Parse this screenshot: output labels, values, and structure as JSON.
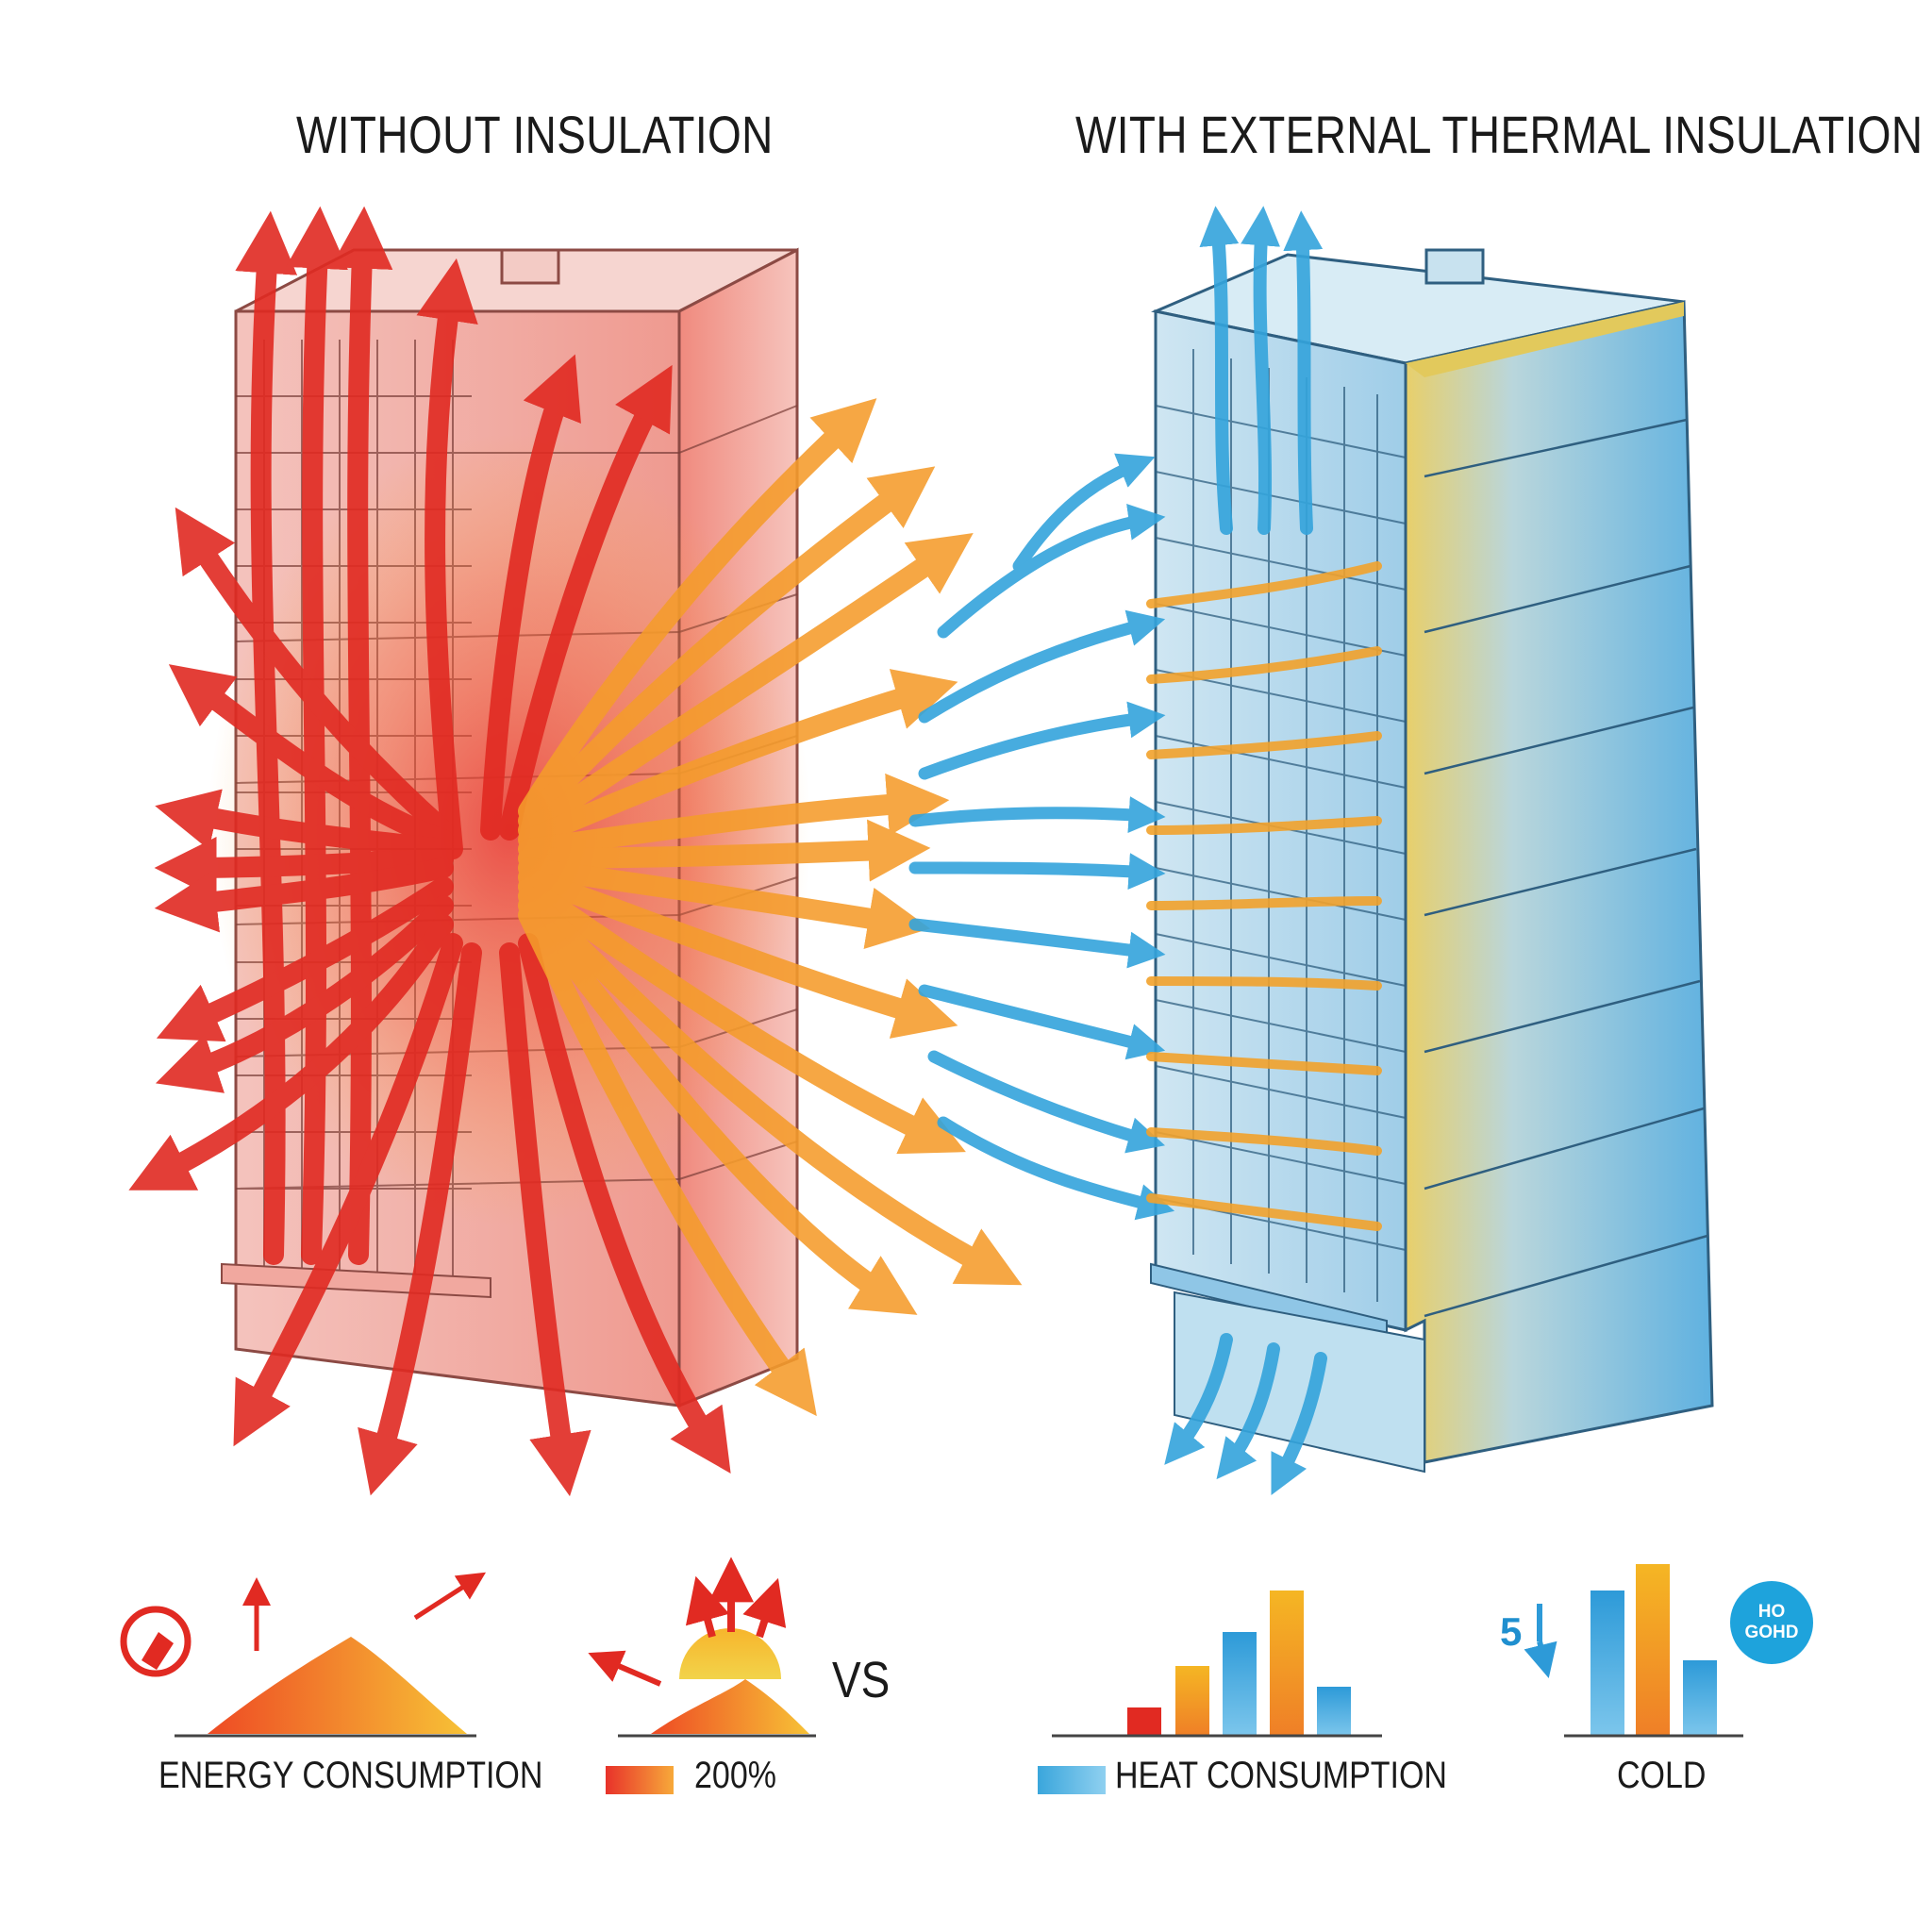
{
  "headings": {
    "left": "WITHOUT INSULATION",
    "right": "WITH EXTERNAL THERMAL INSULATION"
  },
  "legend": {
    "energy_label": "ENERGY CONSUMPTION",
    "percent_label": "200%",
    "vs_label": "VS",
    "heat_label": "HEAT CONSUMPTION",
    "cold_label": "COLD",
    "side_number": "5",
    "badge_line1": "HO",
    "badge_line2": "GOHD"
  },
  "colors": {
    "heat_red": "#e8322a",
    "heat_orange": "#f7a93a",
    "cool_blue": "#2f9bd6",
    "insulation_yellow": "#e6cd6c",
    "building_left_face": "#f2b9b2",
    "building_right_face": "#a8d3ec"
  },
  "icons": {
    "energy_icon": "flame-gauge-icon",
    "sun_icon": "rising-sun-icon",
    "updown_icon": "up-down-arrow-icon"
  }
}
